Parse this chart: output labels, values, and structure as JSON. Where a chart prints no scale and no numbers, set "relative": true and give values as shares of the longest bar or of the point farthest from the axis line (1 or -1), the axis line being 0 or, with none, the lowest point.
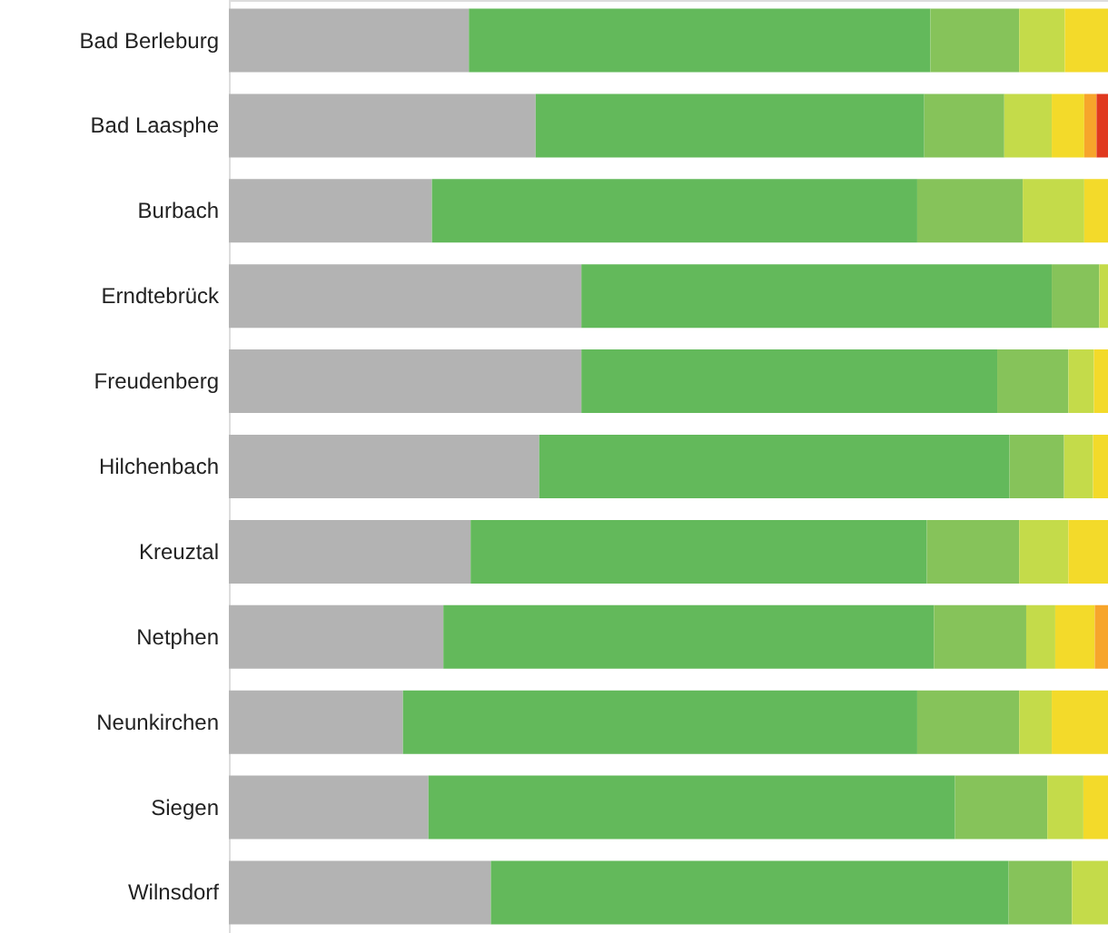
{
  "chart_data": {
    "type": "bar",
    "orientation": "horizontal",
    "stacked": true,
    "relative": true,
    "categories": [
      "Bad Berleburg",
      "Bad Laasphe",
      "Burbach",
      "Erndtebrück",
      "Freudenberg",
      "Hilchenbach",
      "Kreuztal",
      "Netphen",
      "Neunkirchen",
      "Siegen",
      "Wilnsdorf"
    ],
    "series": [
      {
        "color": "#b3b3b3",
        "values": [
          0.273,
          0.349,
          0.231,
          0.401,
          0.401,
          0.353,
          0.275,
          0.244,
          0.198,
          0.227,
          0.298
        ]
      },
      {
        "color": "#63b95b",
        "values": [
          0.525,
          0.442,
          0.552,
          0.535,
          0.473,
          0.535,
          0.519,
          0.558,
          0.585,
          0.599,
          0.589
        ]
      },
      {
        "color": "#86c35a",
        "values": [
          0.101,
          0.091,
          0.12,
          0.054,
          0.081,
          0.062,
          0.105,
          0.105,
          0.116,
          0.105,
          0.072
        ]
      },
      {
        "color": "#c4db4a",
        "values": [
          0.052,
          0.054,
          0.07,
          0.01,
          0.029,
          0.033,
          0.056,
          0.033,
          0.037,
          0.041,
          0.041
        ]
      },
      {
        "color": "#f3da2a",
        "values": [
          0.049,
          0.037,
          0.027,
          null,
          0.016,
          0.017,
          0.045,
          0.045,
          0.064,
          0.028,
          null
        ]
      },
      {
        "color": "#f7a52b",
        "values": [
          null,
          0.014,
          null,
          null,
          null,
          null,
          null,
          0.015,
          null,
          null,
          null
        ]
      },
      {
        "color": "#e0391f",
        "values": [
          null,
          0.013,
          null,
          null,
          null,
          null,
          null,
          null,
          null,
          null,
          null
        ]
      }
    ]
  }
}
